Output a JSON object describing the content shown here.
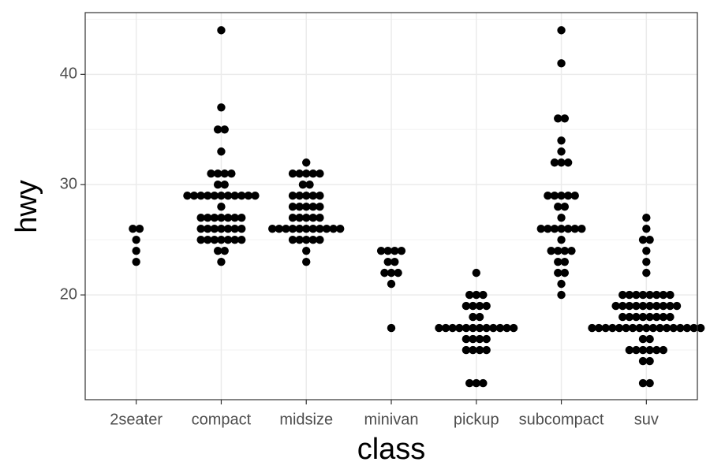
{
  "chart_data": {
    "type": "dotplot",
    "x_label": "class",
    "y_label": "hwy",
    "categories": [
      "2seater",
      "compact",
      "midsize",
      "minivan",
      "pickup",
      "subcompact",
      "suv"
    ],
    "values": [
      [
        26,
        26,
        25,
        24,
        23
      ],
      [
        44,
        37,
        35,
        35,
        33,
        31,
        31,
        31,
        31,
        30,
        30,
        29,
        29,
        29,
        29,
        29,
        29,
        29,
        29,
        29,
        29,
        29,
        28,
        27,
        27,
        27,
        27,
        27,
        27,
        27,
        26,
        26,
        26,
        26,
        26,
        26,
        26,
        25,
        25,
        25,
        25,
        25,
        25,
        25,
        24,
        24,
        23
      ],
      [
        32,
        31,
        31,
        31,
        31,
        31,
        30,
        30,
        29,
        29,
        29,
        29,
        29,
        28,
        28,
        28,
        28,
        28,
        27,
        27,
        27,
        27,
        27,
        26,
        26,
        26,
        26,
        26,
        26,
        26,
        26,
        26,
        26,
        26,
        25,
        25,
        25,
        25,
        25,
        24,
        23
      ],
      [
        24,
        24,
        24,
        24,
        23,
        23,
        22,
        22,
        22,
        21,
        17
      ],
      [
        22,
        20,
        20,
        20,
        19,
        19,
        19,
        19,
        18,
        18,
        17,
        17,
        17,
        17,
        17,
        17,
        17,
        17,
        17,
        17,
        17,
        17,
        16,
        16,
        16,
        16,
        15,
        15,
        15,
        15,
        12,
        12,
        12
      ],
      [
        44,
        41,
        36,
        36,
        34,
        33,
        32,
        32,
        32,
        29,
        29,
        29,
        29,
        29,
        28,
        28,
        27,
        26,
        26,
        26,
        26,
        26,
        26,
        26,
        25,
        24,
        24,
        24,
        24,
        23,
        23,
        22,
        22,
        21,
        20
      ],
      [
        27,
        26,
        25,
        25,
        24,
        23,
        22,
        20,
        20,
        20,
        20,
        20,
        20,
        20,
        20,
        19,
        19,
        19,
        19,
        19,
        19,
        19,
        19,
        19,
        19,
        18,
        18,
        18,
        18,
        18,
        18,
        18,
        18,
        17,
        17,
        17,
        17,
        17,
        17,
        17,
        17,
        17,
        17,
        17,
        17,
        17,
        17,
        17,
        17,
        17,
        16,
        16,
        15,
        15,
        15,
        15,
        15,
        15,
        14,
        14,
        12,
        12
      ]
    ],
    "color": "#000000",
    "ylim": [
      10.5,
      45.6
    ],
    "yticks": [
      20,
      30,
      40
    ],
    "y_minor_ticks": [
      15,
      25,
      35,
      45
    ],
    "grid": true
  }
}
